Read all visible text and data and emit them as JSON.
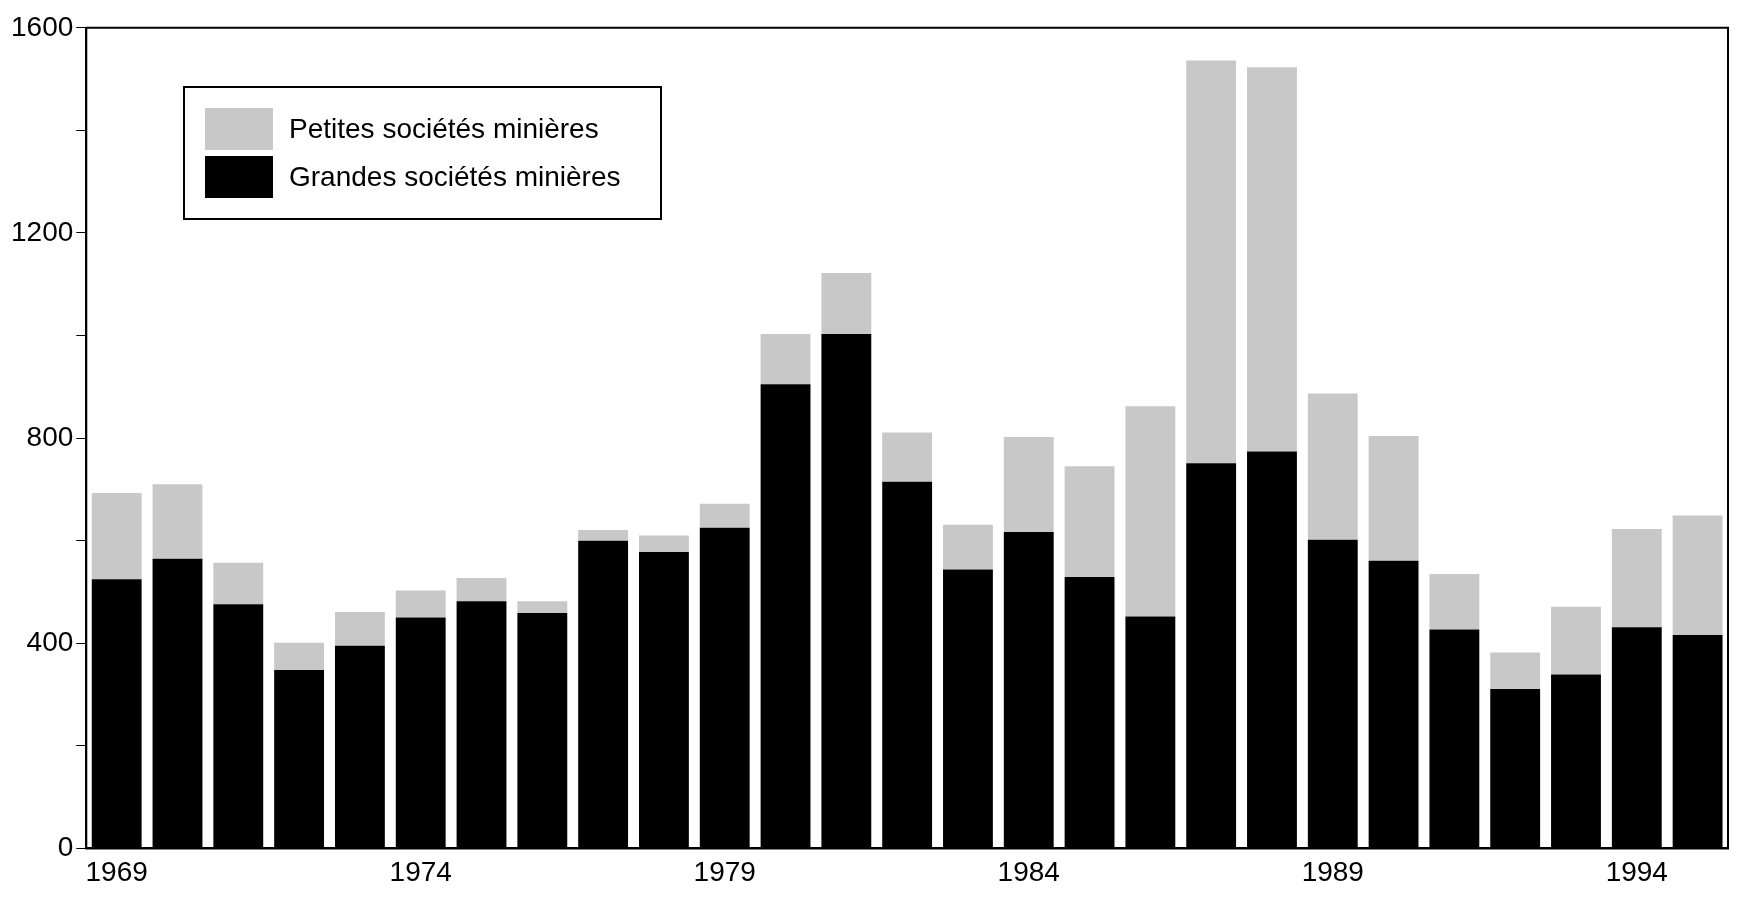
{
  "chart_data": {
    "type": "bar",
    "stacked": true,
    "categories": [
      "1969",
      null,
      null,
      null,
      null,
      "1974",
      null,
      null,
      null,
      null,
      "1979",
      null,
      null,
      null,
      null,
      "1984",
      null,
      null,
      null,
      null,
      "1989",
      null,
      null,
      null,
      null,
      "1994",
      null
    ],
    "series": [
      {
        "name": "Grandes sociétés minières",
        "color": "#000000",
        "values": [
          525,
          565,
          476,
          348,
          395,
          450,
          482,
          459,
          600,
          578,
          625,
          905,
          1003,
          715,
          544,
          617,
          529,
          452,
          751,
          774,
          602,
          561,
          427,
          311,
          339,
          431,
          416
        ]
      },
      {
        "name": "Petites sociétés minières",
        "color": "#c8c8c8",
        "values": [
          168,
          145,
          81,
          53,
          66,
          53,
          45,
          23,
          21,
          32,
          47,
          98,
          119,
          96,
          87,
          185,
          216,
          410,
          785,
          749,
          285,
          243,
          108,
          71,
          132,
          192,
          233
        ]
      }
    ],
    "ylim": [
      0,
      1600
    ],
    "yticks": [
      0,
      {
        "value": 200,
        "label": null
      },
      400,
      {
        "value": 600,
        "label": null
      },
      800,
      {
        "value": 1000,
        "label": null
      },
      1200,
      {
        "value": 1400,
        "label": null
      },
      1600
    ],
    "grid": false,
    "legend": "top left"
  }
}
